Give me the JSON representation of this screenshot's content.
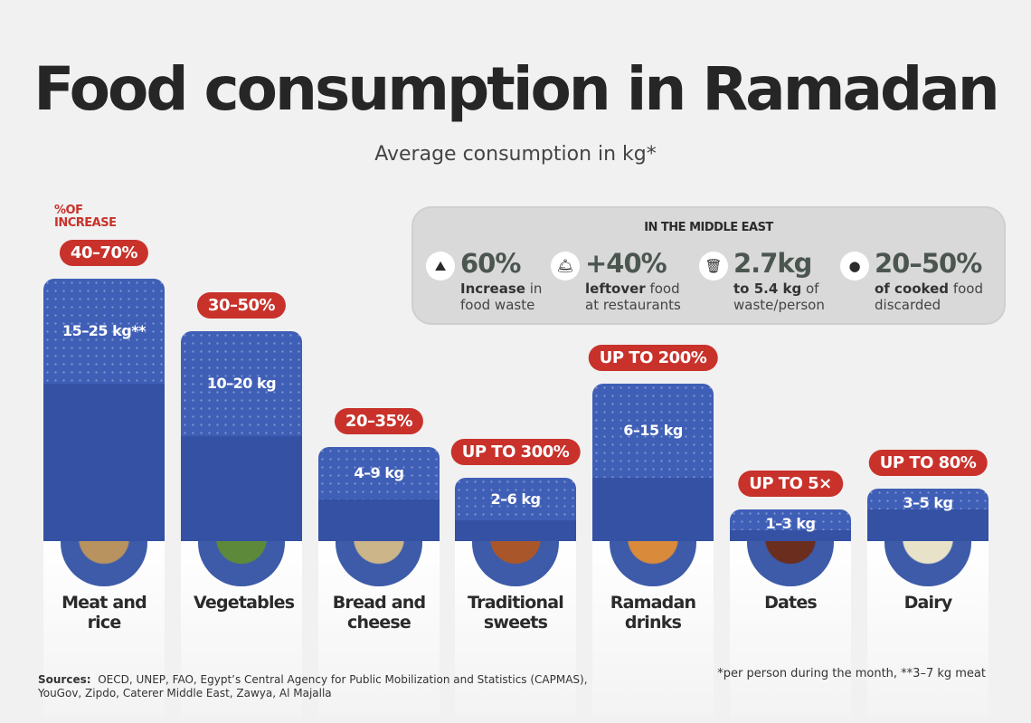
{
  "title": "Food consumption in Ramadan",
  "subtitle": "Average consumption in kg*",
  "increase_label": [
    "%OF",
    "INCREASE"
  ],
  "middle_east": {
    "title": "IN THE MIDDLE EAST",
    "stats": [
      {
        "icon": "waste-pile-icon",
        "glyph": "⛰",
        "value": "60%",
        "bold": "Increase",
        "rest": " in",
        "line2": "food waste"
      },
      {
        "icon": "cloche-icon",
        "glyph": "🛎",
        "value": "+40%",
        "bold": "leftover",
        "rest": " food",
        "line2": "at restaurants"
      },
      {
        "icon": "trash-bin-icon",
        "glyph": "🗑",
        "value": "2.7kg",
        "bold": "to 5.4 kg",
        "rest": " of",
        "line2": "waste/person"
      },
      {
        "icon": "plate-icon",
        "glyph": "●",
        "value": "20–50%",
        "bold": "of cooked",
        "rest": " food",
        "line2": "discarded"
      }
    ]
  },
  "chart_data": {
    "type": "bar",
    "ylabel": "Average consumption in kg*",
    "categories": [
      "Meat and rice",
      "Vegetables",
      "Bread and cheese",
      "Traditional sweets",
      "Ramadan drinks",
      "Dates",
      "Dairy"
    ],
    "series": [
      {
        "name": "min kg",
        "values": [
          15,
          10,
          4,
          2,
          6,
          1,
          3
        ]
      },
      {
        "name": "max kg",
        "values": [
          25,
          20,
          9,
          6,
          15,
          3,
          5
        ]
      }
    ],
    "value_labels": [
      "15–25 kg**",
      "10–20 kg",
      "4–9 kg",
      "2–6 kg",
      "6–15 kg",
      "1–3 kg",
      "3–5 kg"
    ],
    "increase_labels": [
      "40–70%",
      "30–50%",
      "20–35%",
      "UP TO 300%",
      "UP TO 200%",
      "UP TO 5×",
      "UP TO 80%"
    ],
    "colors": {
      "bar_min": "#3451a3",
      "bar_max": "#3f5fb6",
      "pill": "#c8322b"
    }
  },
  "sources_label": "Sources:",
  "sources": "OECD, UNEP, FAO, Egypt’s Central Agency for Public Mobilization and Statistics (CAPMAS), YouGov, Zipdo, Caterer Middle East, Zawya, Al Majalla",
  "note": "*per person during the month, **3–7 kg meat"
}
